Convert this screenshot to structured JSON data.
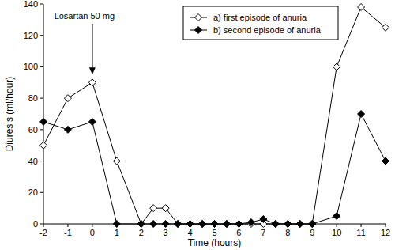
{
  "chart_data": {
    "type": "line",
    "x_label": "Time (hours)",
    "y_label": "Diuresis (ml/hour)",
    "x": [
      -2,
      -1,
      0,
      1,
      2,
      2.5,
      3,
      3.5,
      4,
      4.5,
      5,
      5.5,
      6,
      6.5,
      7,
      7.5,
      8,
      8.5,
      9,
      10,
      11,
      12
    ],
    "series": [
      {
        "name": "a) first episode of anuria",
        "color": "#000000",
        "marker": "open-diamond",
        "line_style": "solid",
        "values": [
          50,
          80,
          90,
          40,
          0,
          10,
          10,
          0,
          0,
          0,
          0,
          0,
          0,
          0,
          0,
          0,
          0,
          0,
          0,
          100,
          138,
          125
        ]
      },
      {
        "name": "b) second episode of anuria",
        "color": "#000000",
        "marker": "diamond",
        "line_style": "solid",
        "values": [
          65,
          60,
          65,
          0,
          0,
          0,
          0,
          0,
          0,
          0,
          0,
          0,
          0,
          1,
          3,
          0,
          0,
          0,
          0,
          5,
          70,
          40
        ]
      }
    ],
    "annotations": [
      {
        "text": "Losartan 50 mg",
        "x": 0,
        "y": 95
      }
    ],
    "xlim": [
      -2,
      12
    ],
    "xticks": [
      -2,
      -1,
      0,
      1,
      2,
      3,
      4,
      5,
      6,
      7,
      8,
      9,
      10,
      11,
      12
    ],
    "ylim": [
      0,
      140
    ],
    "yticks": [
      0,
      20,
      40,
      60,
      80,
      100,
      120,
      140
    ],
    "grid": false,
    "legend": "top-right"
  }
}
